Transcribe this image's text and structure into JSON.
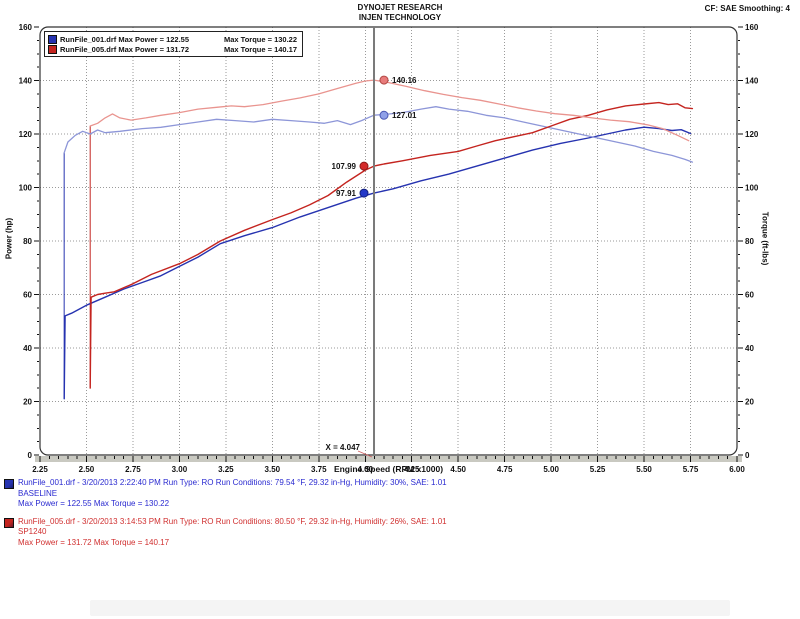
{
  "header": {
    "title_line1": "DYNOJET RESEARCH",
    "title_line2": "INJEN TECHNOLOGY",
    "correction": "CF: SAE  Smoothing: 4"
  },
  "legend": {
    "rows": [
      {
        "file_power": "RunFile_001.drf Max Power = 122.55",
        "torque": "Max Torque = 130.22",
        "color": "#2633b0"
      },
      {
        "file_power": "RunFile_005.drf Max Power = 131.72",
        "torque": "Max Torque = 140.17",
        "color": "#c4241f"
      }
    ]
  },
  "chart_data": {
    "type": "line",
    "xlabel": "Engine Speed (RPM x1000)",
    "ylabel_left": "Power (hp)",
    "ylabel_right": "Torque (ft-lbs)",
    "xlim": [
      2.25,
      6.0
    ],
    "ylim": [
      0,
      160
    ],
    "x_major_step": 0.25,
    "x_minor_step": 0.05,
    "y_major_step": 20,
    "y_minor_step": 5,
    "grid": "dotted",
    "grid_color": "#9a9a9a",
    "border_color": "#333333",
    "axis_strip_color": "#c9c9c1",
    "series": [
      {
        "name": "RunFile_001 Power (hp)",
        "color": "#2633b0",
        "width": 1.4,
        "points": [
          [
            2.38,
            21
          ],
          [
            2.385,
            52
          ],
          [
            2.42,
            53
          ],
          [
            2.5,
            56
          ],
          [
            2.6,
            59
          ],
          [
            2.7,
            62
          ],
          [
            2.8,
            64.5
          ],
          [
            2.9,
            67
          ],
          [
            3.0,
            70.5
          ],
          [
            3.1,
            74
          ],
          [
            3.22,
            79
          ],
          [
            3.35,
            82
          ],
          [
            3.5,
            85
          ],
          [
            3.65,
            89
          ],
          [
            3.8,
            92.5
          ],
          [
            3.95,
            96
          ],
          [
            4.047,
            97.91
          ],
          [
            4.15,
            99.5
          ],
          [
            4.3,
            102.5
          ],
          [
            4.45,
            105
          ],
          [
            4.6,
            108
          ],
          [
            4.75,
            111
          ],
          [
            4.9,
            114
          ],
          [
            5.05,
            116.5
          ],
          [
            5.2,
            118.5
          ],
          [
            5.3,
            120
          ],
          [
            5.4,
            121.5
          ],
          [
            5.5,
            122.55
          ],
          [
            5.58,
            122
          ],
          [
            5.65,
            121.3
          ],
          [
            5.7,
            121.6
          ],
          [
            5.75,
            120.2
          ]
        ]
      },
      {
        "name": "RunFile_001 Torque (ft-lbs)",
        "color": "#8d96d8",
        "width": 1.3,
        "points": [
          [
            2.38,
            113
          ],
          [
            2.4,
            117
          ],
          [
            2.44,
            119.5
          ],
          [
            2.48,
            121
          ],
          [
            2.52,
            120
          ],
          [
            2.56,
            121.5
          ],
          [
            2.6,
            120.5
          ],
          [
            2.68,
            121
          ],
          [
            2.8,
            122
          ],
          [
            2.9,
            122.5
          ],
          [
            3.0,
            123.5
          ],
          [
            3.1,
            124.5
          ],
          [
            3.2,
            125.5
          ],
          [
            3.3,
            125
          ],
          [
            3.4,
            124.5
          ],
          [
            3.5,
            125.5
          ],
          [
            3.6,
            125
          ],
          [
            3.7,
            124.5
          ],
          [
            3.78,
            124
          ],
          [
            3.85,
            125
          ],
          [
            3.92,
            123.5
          ],
          [
            3.98,
            125
          ],
          [
            4.047,
            127.01
          ],
          [
            4.1,
            127.3
          ],
          [
            4.2,
            128
          ],
          [
            4.3,
            129.3
          ],
          [
            4.38,
            130.22
          ],
          [
            4.45,
            129.3
          ],
          [
            4.55,
            128.5
          ],
          [
            4.65,
            127
          ],
          [
            4.75,
            126
          ],
          [
            4.85,
            124.5
          ],
          [
            4.95,
            123
          ],
          [
            5.05,
            121.5
          ],
          [
            5.15,
            120
          ],
          [
            5.25,
            118.5
          ],
          [
            5.35,
            117
          ],
          [
            5.45,
            115.5
          ],
          [
            5.55,
            113.5
          ],
          [
            5.65,
            112
          ],
          [
            5.72,
            110.5
          ],
          [
            5.76,
            109.5
          ]
        ]
      },
      {
        "name": "RunFile_005 Power (hp)",
        "color": "#c4241f",
        "width": 1.4,
        "points": [
          [
            2.52,
            25
          ],
          [
            2.525,
            59
          ],
          [
            2.56,
            60
          ],
          [
            2.6,
            60.5
          ],
          [
            2.65,
            61
          ],
          [
            2.75,
            64
          ],
          [
            2.85,
            67.5
          ],
          [
            3.0,
            71.5
          ],
          [
            3.1,
            75
          ],
          [
            3.22,
            80
          ],
          [
            3.35,
            84
          ],
          [
            3.5,
            88
          ],
          [
            3.6,
            90.5
          ],
          [
            3.7,
            93.5
          ],
          [
            3.8,
            97
          ],
          [
            3.9,
            102
          ],
          [
            4.0,
            106.5
          ],
          [
            4.047,
            107.99
          ],
          [
            4.1,
            108.8
          ],
          [
            4.2,
            110
          ],
          [
            4.35,
            112
          ],
          [
            4.5,
            113.5
          ],
          [
            4.6,
            115.5
          ],
          [
            4.7,
            117.5
          ],
          [
            4.8,
            119
          ],
          [
            4.9,
            120.5
          ],
          [
            5.0,
            123
          ],
          [
            5.1,
            125.5
          ],
          [
            5.2,
            127
          ],
          [
            5.3,
            129
          ],
          [
            5.4,
            130.5
          ],
          [
            5.5,
            131.2
          ],
          [
            5.58,
            131.72
          ],
          [
            5.63,
            131
          ],
          [
            5.68,
            131.3
          ],
          [
            5.72,
            129.8
          ],
          [
            5.76,
            129.5
          ]
        ]
      },
      {
        "name": "RunFile_005 Torque (ft-lbs)",
        "color": "#e9948f",
        "width": 1.3,
        "points": [
          [
            2.52,
            123
          ],
          [
            2.56,
            124
          ],
          [
            2.6,
            126
          ],
          [
            2.64,
            127.5
          ],
          [
            2.68,
            126
          ],
          [
            2.74,
            125.2
          ],
          [
            2.82,
            126
          ],
          [
            2.9,
            127
          ],
          [
            3.0,
            128
          ],
          [
            3.1,
            129.3
          ],
          [
            3.2,
            130
          ],
          [
            3.28,
            130.5
          ],
          [
            3.35,
            130.2
          ],
          [
            3.45,
            131
          ],
          [
            3.55,
            132.3
          ],
          [
            3.65,
            133.5
          ],
          [
            3.75,
            135
          ],
          [
            3.85,
            137
          ],
          [
            3.95,
            139
          ],
          [
            4.0,
            139.8
          ],
          [
            4.047,
            140.16
          ],
          [
            4.12,
            139.3
          ],
          [
            4.22,
            137.8
          ],
          [
            4.32,
            136.2
          ],
          [
            4.42,
            134.8
          ],
          [
            4.52,
            133.6
          ],
          [
            4.62,
            132.6
          ],
          [
            4.72,
            131.2
          ],
          [
            4.82,
            129.8
          ],
          [
            4.92,
            128.6
          ],
          [
            5.02,
            127.6
          ],
          [
            5.12,
            127
          ],
          [
            5.22,
            126
          ],
          [
            5.32,
            125.2
          ],
          [
            5.42,
            124.6
          ],
          [
            5.52,
            123.4
          ],
          [
            5.6,
            122
          ],
          [
            5.68,
            119.5
          ],
          [
            5.74,
            117.5
          ]
        ]
      }
    ],
    "start_spikes": [
      {
        "x": 2.38,
        "y0": 21,
        "y1": 113,
        "color": "#2633b0"
      },
      {
        "x": 2.52,
        "y0": 25,
        "y1": 123,
        "color": "#c4241f"
      }
    ],
    "cursor": {
      "x": 4.047,
      "label": "X = 4.047",
      "line_color": "#7a7a7a",
      "markers": [
        {
          "value": 140.16,
          "label": "140.16",
          "fill": "#e87b7b",
          "stroke": "#b34a46",
          "side": "right"
        },
        {
          "value": 127.01,
          "label": "127.01",
          "fill": "#8fa0e8",
          "stroke": "#4a56b3",
          "side": "right"
        },
        {
          "value": 107.99,
          "label": "107.99",
          "fill": "#d42a2a",
          "stroke": "#8a1a1a",
          "side": "left"
        },
        {
          "value": 97.91,
          "label": "97.91",
          "fill": "#2438c8",
          "stroke": "#141f7a",
          "side": "left"
        }
      ]
    }
  },
  "footer": {
    "runs": [
      {
        "color": "#2a2ad0",
        "icon_color": "#2633b0",
        "line1": "RunFile_001.drf - 3/20/2013 2:22:40 PM  Run Type: RO  Run Conditions: 79.54 °F, 29.32 in-Hg,  Humidity:  30%, SAE: 1.01",
        "line2": "BASELINE",
        "line3": "Max Power = 122.55  Max Torque = 130.22"
      },
      {
        "color": "#d03030",
        "icon_color": "#c4241f",
        "line1": "RunFile_005.drf - 3/20/2013 3:14:53 PM  Run Type: RO  Run Conditions: 80.50 °F, 29.32 in-Hg,  Humidity:  26%, SAE: 1.01",
        "line2": "SP1240",
        "line3": "Max Power = 131.72  Max Torque = 140.17"
      }
    ]
  }
}
